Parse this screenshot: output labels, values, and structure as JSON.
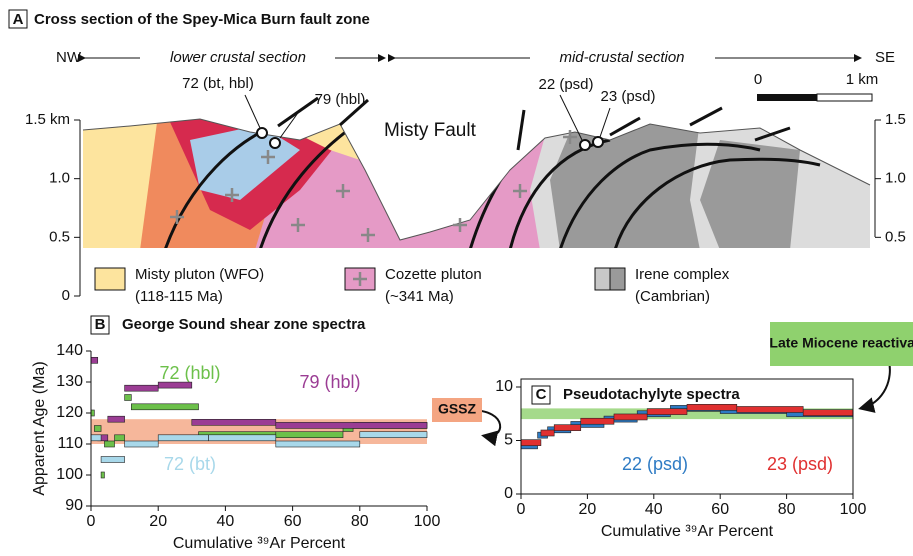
{
  "panel_a": {
    "label": "A",
    "title": "Cross section of the Spey-Mica Burn fault zone",
    "nw": "NW",
    "se": "SE",
    "left_section": "lower crustal section",
    "right_section": "mid-crustal section",
    "scale_labels": [
      "0",
      "1 km"
    ],
    "fault": "Misty Fault",
    "samples": [
      "72 (bt, hbl)",
      "79 (hbl)",
      "22 (psd)",
      "23 (psd)"
    ],
    "ylim": [
      0,
      1.5
    ],
    "yticks": [
      {
        "value": 1.5,
        "label": "1.5 km"
      },
      {
        "value": 1,
        "label": "1.0"
      },
      0.5,
      0
    ],
    "y2ticks": [
      1.5,
      {
        "value": 1,
        "label": "1.0"
      },
      0.5
    ],
    "legend": [
      {
        "name": "Misty pluton (WFO)",
        "age": "(118-115 Ma)",
        "color": "#fde49e"
      },
      {
        "name": "Cozette pluton",
        "age": "(~341 Ma)",
        "color": "#e59ac6"
      },
      {
        "name": "Irene complex",
        "age": "(Cambrian)",
        "color": "#c8c8c8"
      }
    ]
  },
  "chart_data": [
    {
      "type": "step",
      "label": "B",
      "title": "George Sound shear zone spectra",
      "y_label": "Apparent Age (Ma)",
      "x_label": "Cumulative ³⁹Ar Percent",
      "xlim": [
        0,
        100
      ],
      "ylim": [
        90,
        140
      ],
      "xticks": [
        0,
        20,
        40,
        60,
        80,
        100
      ],
      "yticks": [
        90,
        100,
        110,
        120,
        130,
        140
      ],
      "bands": [
        {
          "name": "GSSZ",
          "range": [
            110,
            118
          ],
          "color": "#f4a582"
        }
      ],
      "series": [
        {
          "name": "72 (hbl)",
          "color": "#6cc04a",
          "bins": [
            0,
            1,
            3,
            4,
            7,
            10,
            12,
            32,
            55,
            75,
            78,
            100
          ],
          "values": [
            120,
            115,
            100,
            110,
            112,
            125,
            122,
            113,
            113,
            115,
            116
          ]
        },
        {
          "name": "79 (hbl)",
          "color": "#9b3d94",
          "bins": [
            0,
            2,
            5,
            10,
            20,
            30,
            55,
            100
          ],
          "values": [
            137,
            112,
            118,
            128,
            129,
            117,
            116
          ]
        },
        {
          "name": "72 (bt)",
          "color": "#a8d8ea",
          "bins": [
            0,
            3,
            10,
            20,
            35,
            55,
            80,
            100
          ],
          "values": [
            112,
            105,
            110,
            112,
            112,
            110,
            113
          ]
        }
      ]
    },
    {
      "type": "step",
      "label": "C",
      "title": "Pseudotachylyte spectra",
      "x_label": "Cumulative ³⁹Ar Percent",
      "xlim": [
        0,
        100
      ],
      "ylim": [
        0,
        10
      ],
      "xticks": [
        0,
        20,
        40,
        60,
        80,
        100
      ],
      "yticks": [
        0,
        5,
        10
      ],
      "bands": [
        {
          "name": "Late Miocene reactivation",
          "range": [
            7,
            8
          ],
          "color": "#8fd16e"
        }
      ],
      "series": [
        {
          "name": "22 (psd)",
          "color": "#2e7bc4",
          "bins": [
            0,
            5,
            8,
            15,
            25,
            35,
            45,
            60,
            80,
            100
          ],
          "values": [
            4.5,
            5.5,
            6,
            6.5,
            7,
            7.5,
            8,
            7.8,
            7.5
          ]
        },
        {
          "name": "23 (psd)",
          "color": "#e03030",
          "bins": [
            0,
            6,
            10,
            18,
            28,
            38,
            50,
            65,
            85,
            100
          ],
          "values": [
            4.8,
            5.7,
            6.2,
            6.8,
            7.2,
            7.7,
            8.1,
            7.9,
            7.6
          ]
        }
      ]
    }
  ]
}
